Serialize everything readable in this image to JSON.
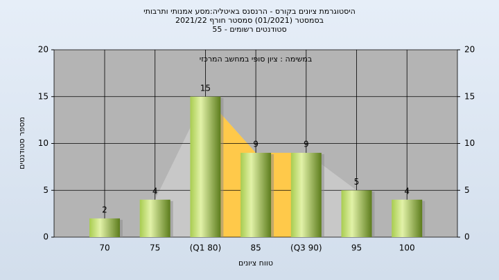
{
  "chart_data": {
    "type": "bar",
    "title": [
      "היסטוגרמת ציונים בקורס - הרנסנס באיטליה:מסע אמנותי ותרבותי",
      "בסמסטר  (01/2021)  סמסטר חורף  2021/22",
      "סטודנטים רשומים - 55"
    ],
    "annotation": "במשימה : ציון סופי במחשב המרכזי",
    "x_label": "טווח ציונים",
    "y_label": "מספר סטודנטים",
    "categories": [
      "70",
      "75",
      "(Q1 80)",
      "85",
      "(Q3 90)",
      "95",
      "100"
    ],
    "values": [
      2,
      4,
      15,
      9,
      9,
      5,
      4
    ],
    "ylim": [
      0,
      20
    ],
    "yticks": [
      0,
      5,
      10,
      15,
      20
    ],
    "y2lim": [
      0,
      20
    ],
    "y2ticks": [
      0,
      5,
      10,
      15,
      20
    ],
    "grid": true
  }
}
